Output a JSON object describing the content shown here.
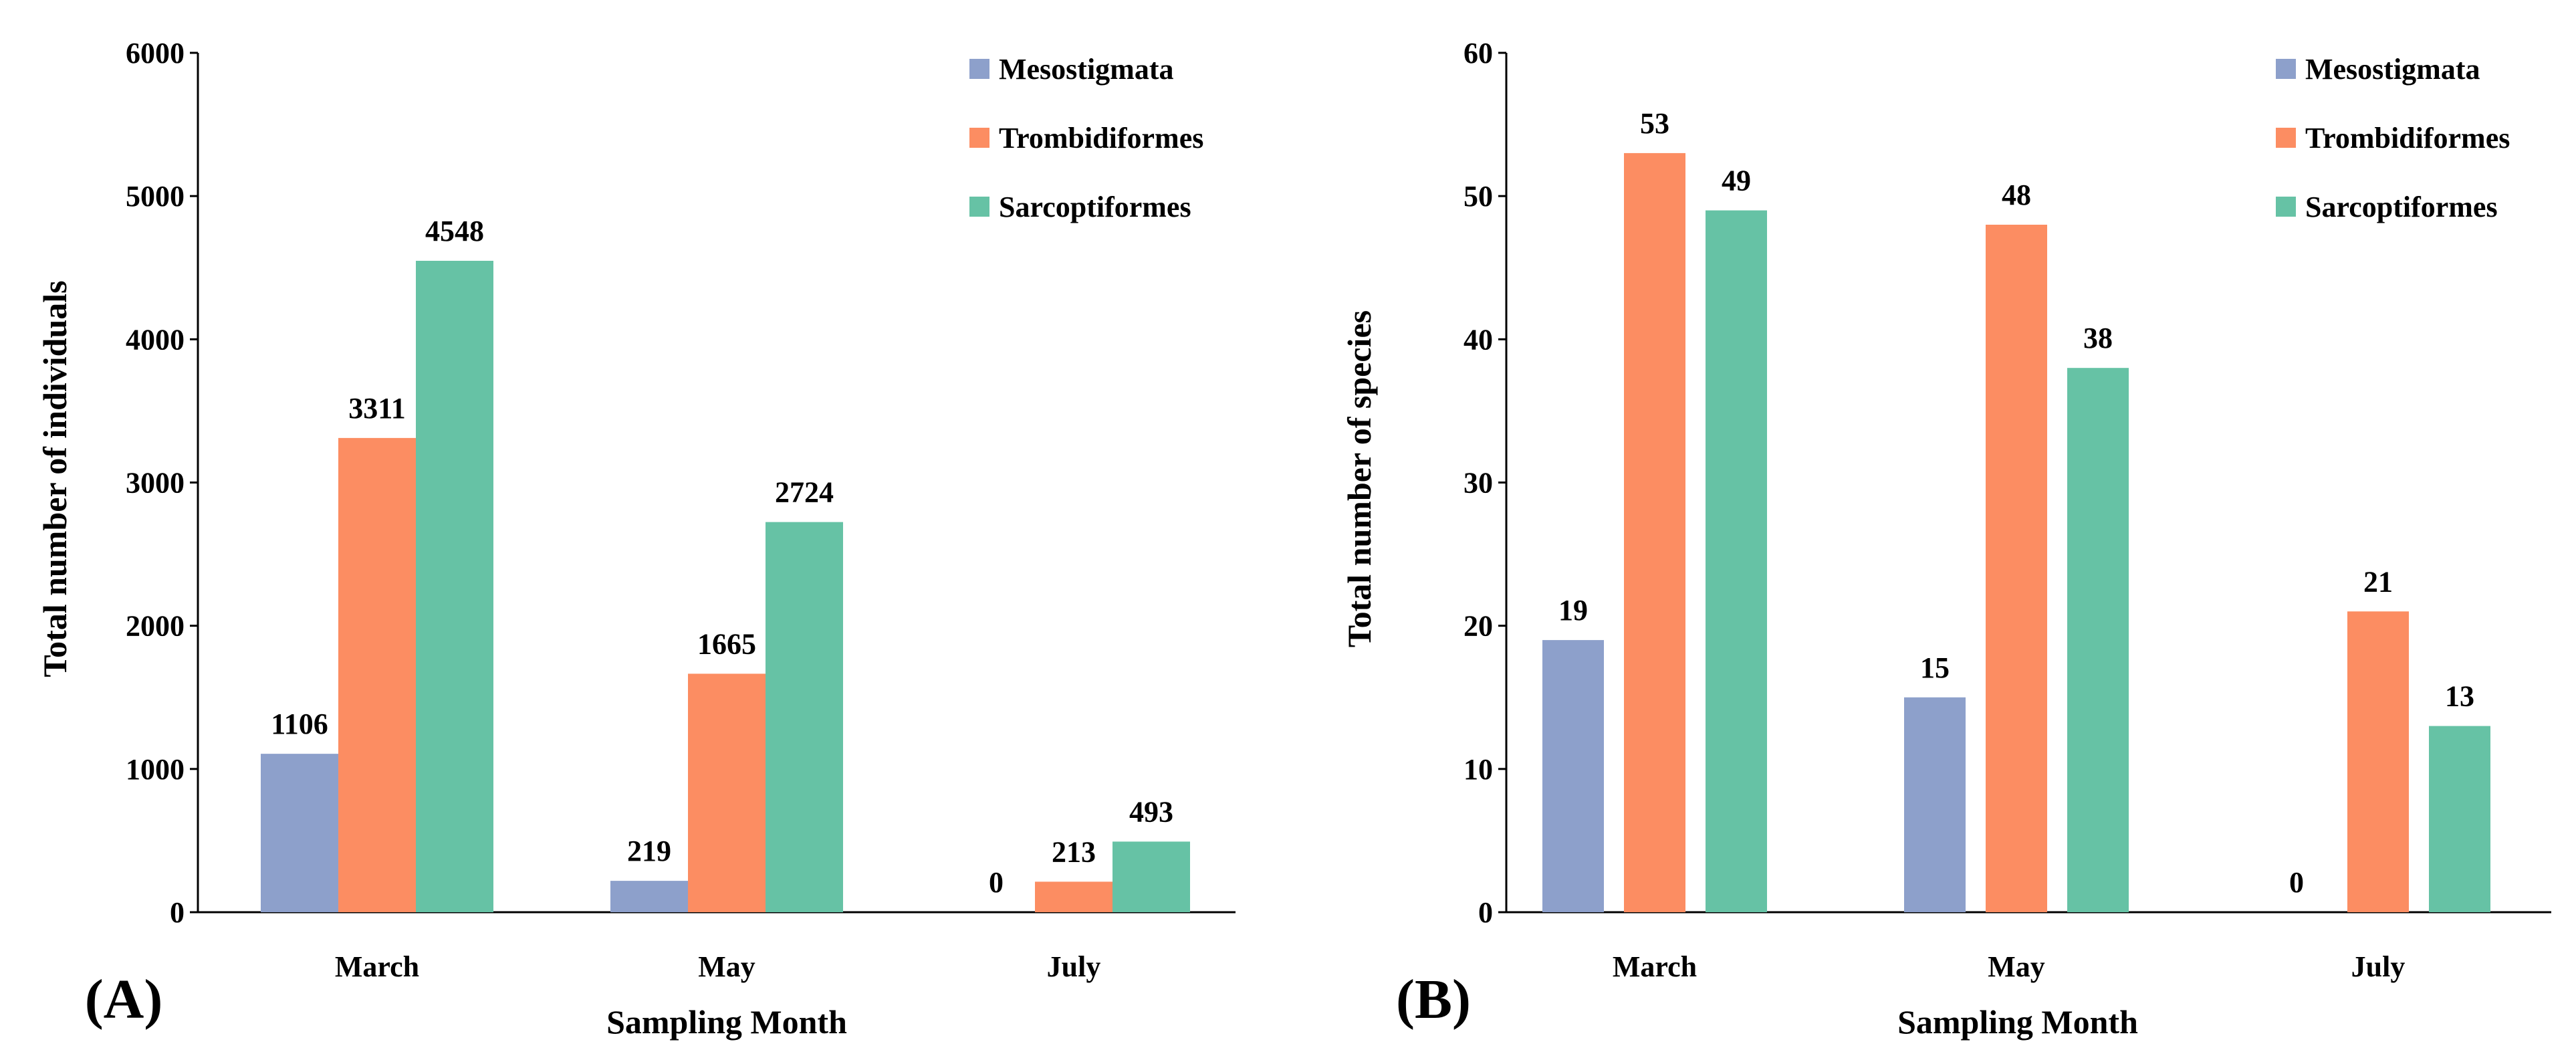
{
  "colors": {
    "Mesostigmata": "#8DA0CB",
    "Trombidiformes": "#FC8D62",
    "Sarcoptiformes": "#66C2A5"
  },
  "chart_data": [
    {
      "type": "bar",
      "panel_label": "(A)",
      "categories": [
        "March",
        "May",
        "July"
      ],
      "series": [
        {
          "name": "Mesostigmata",
          "values": [
            1106,
            219,
            0
          ]
        },
        {
          "name": "Trombidiformes",
          "values": [
            3311,
            1665,
            213
          ]
        },
        {
          "name": "Sarcoptiformes",
          "values": [
            4548,
            2724,
            493
          ]
        }
      ],
      "xlabel": "Sampling Month",
      "ylabel": "Total number of individuals",
      "ylim": [
        0,
        6000
      ],
      "yticks": [
        "0",
        "1000",
        "2000",
        "3000",
        "4000",
        "5000",
        "6000"
      ],
      "grid": false,
      "legend": "top-right"
    },
    {
      "type": "bar",
      "panel_label": "(B)",
      "categories": [
        "March",
        "May",
        "July"
      ],
      "series": [
        {
          "name": "Mesostigmata",
          "values": [
            19,
            15,
            0
          ]
        },
        {
          "name": "Trombidiformes",
          "values": [
            53,
            48,
            21
          ]
        },
        {
          "name": "Sarcoptiformes",
          "values": [
            49,
            38,
            13
          ]
        }
      ],
      "xlabel": "Sampling Month",
      "ylabel": "Total number of species",
      "ylim": [
        0,
        60
      ],
      "yticks": [
        "0",
        "10",
        "20",
        "30",
        "40",
        "50",
        "60"
      ],
      "grid": false,
      "legend": "top-right"
    }
  ]
}
